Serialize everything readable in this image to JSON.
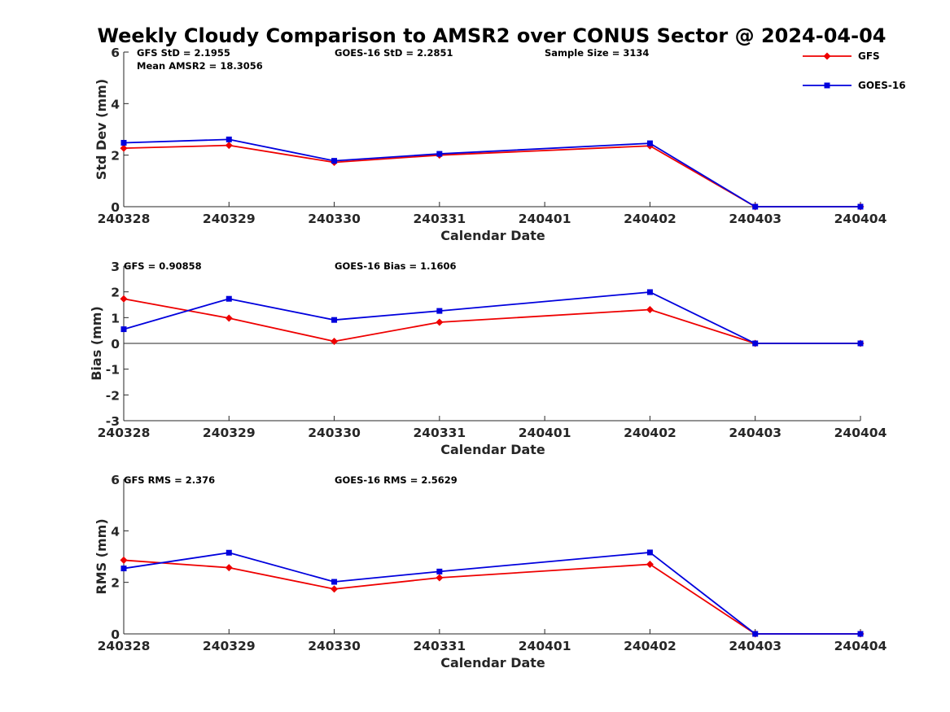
{
  "title": "Weekly Cloudy Comparison to AMSR2 over CONUS Sector @ 2024-04-04",
  "legend": {
    "placement": "top-right",
    "items": [
      {
        "label": "GFS",
        "color": "#ee0000",
        "marker": "diamond"
      },
      {
        "label": "GOES-16",
        "color": "#0000dd",
        "marker": "square"
      }
    ]
  },
  "chart_data": [
    {
      "type": "line",
      "title": "",
      "xlabel": "Calendar Date",
      "ylabel": "Std Dev (mm)",
      "x": [
        "240328",
        "240329",
        "240330",
        "240331",
        "240401",
        "240402",
        "240403",
        "240404"
      ],
      "ylim": [
        0,
        6
      ],
      "yticks": [
        "0",
        "2",
        "4",
        "6"
      ],
      "zero_line": false,
      "annotations": [
        {
          "text": "GFS StD = 2.1955"
        },
        {
          "text": "Mean AMSR2 = 18.3056"
        },
        {
          "text": "GOES-16 StD = 2.2851"
        },
        {
          "text": "Sample Size = 3134"
        }
      ],
      "series": [
        {
          "name": "GFS",
          "color": "#ee0000",
          "marker": "diamond",
          "points": [
            [
              "240328",
              2.27
            ],
            [
              "240329",
              2.38
            ],
            [
              "240330",
              1.72
            ],
            [
              "240331",
              2.0
            ],
            [
              "240402",
              2.36
            ],
            [
              "240403",
              0.0
            ],
            [
              "240404",
              0.0
            ]
          ]
        },
        {
          "name": "GOES-16",
          "color": "#0000dd",
          "marker": "square",
          "points": [
            [
              "240328",
              2.48
            ],
            [
              "240329",
              2.61
            ],
            [
              "240330",
              1.78
            ],
            [
              "240331",
              2.05
            ],
            [
              "240402",
              2.46
            ],
            [
              "240403",
              0.0
            ],
            [
              "240404",
              0.0
            ]
          ]
        }
      ]
    },
    {
      "type": "line",
      "title": "",
      "xlabel": "Calendar Date",
      "ylabel": "Bias (mm)",
      "x": [
        "240328",
        "240329",
        "240330",
        "240331",
        "240401",
        "240402",
        "240403",
        "240404"
      ],
      "ylim": [
        -3,
        3
      ],
      "yticks": [
        "-3",
        "-2",
        "-1",
        "0",
        "1",
        "2",
        "3"
      ],
      "zero_line": true,
      "annotations": [
        {
          "text": "GFS = 0.90858"
        },
        {
          "text": "GOES-16 Bias  = 1.1606"
        }
      ],
      "series": [
        {
          "name": "GFS",
          "color": "#ee0000",
          "marker": "diamond",
          "points": [
            [
              "240328",
              1.73
            ],
            [
              "240329",
              0.98
            ],
            [
              "240330",
              0.08
            ],
            [
              "240331",
              0.82
            ],
            [
              "240402",
              1.31
            ],
            [
              "240403",
              0.0
            ],
            [
              "240404",
              0.0
            ]
          ]
        },
        {
          "name": "GOES-16",
          "color": "#0000dd",
          "marker": "square",
          "points": [
            [
              "240328",
              0.55
            ],
            [
              "240329",
              1.73
            ],
            [
              "240330",
              0.91
            ],
            [
              "240331",
              1.26
            ],
            [
              "240402",
              1.99
            ],
            [
              "240403",
              0.0
            ],
            [
              "240404",
              0.0
            ]
          ]
        }
      ]
    },
    {
      "type": "line",
      "title": "",
      "xlabel": "Calendar Date",
      "ylabel": "RMS (mm)",
      "x": [
        "240328",
        "240329",
        "240330",
        "240331",
        "240401",
        "240402",
        "240403",
        "240404"
      ],
      "ylim": [
        0,
        6
      ],
      "yticks": [
        "0",
        "2",
        "4",
        "6"
      ],
      "zero_line": false,
      "annotations": [
        {
          "text": "GFS RMS = 2.376"
        },
        {
          "text": "GOES-16 RMS = 2.5629"
        }
      ],
      "series": [
        {
          "name": "GFS",
          "color": "#ee0000",
          "marker": "diamond",
          "points": [
            [
              "240328",
              2.86
            ],
            [
              "240329",
              2.57
            ],
            [
              "240330",
              1.74
            ],
            [
              "240331",
              2.18
            ],
            [
              "240402",
              2.7
            ],
            [
              "240403",
              0.0
            ],
            [
              "240404",
              0.0
            ]
          ]
        },
        {
          "name": "GOES-16",
          "color": "#0000dd",
          "marker": "square",
          "points": [
            [
              "240328",
              2.54
            ],
            [
              "240329",
              3.15
            ],
            [
              "240330",
              2.02
            ],
            [
              "240331",
              2.42
            ],
            [
              "240402",
              3.16
            ],
            [
              "240403",
              0.0
            ],
            [
              "240404",
              0.0
            ]
          ]
        }
      ]
    }
  ]
}
